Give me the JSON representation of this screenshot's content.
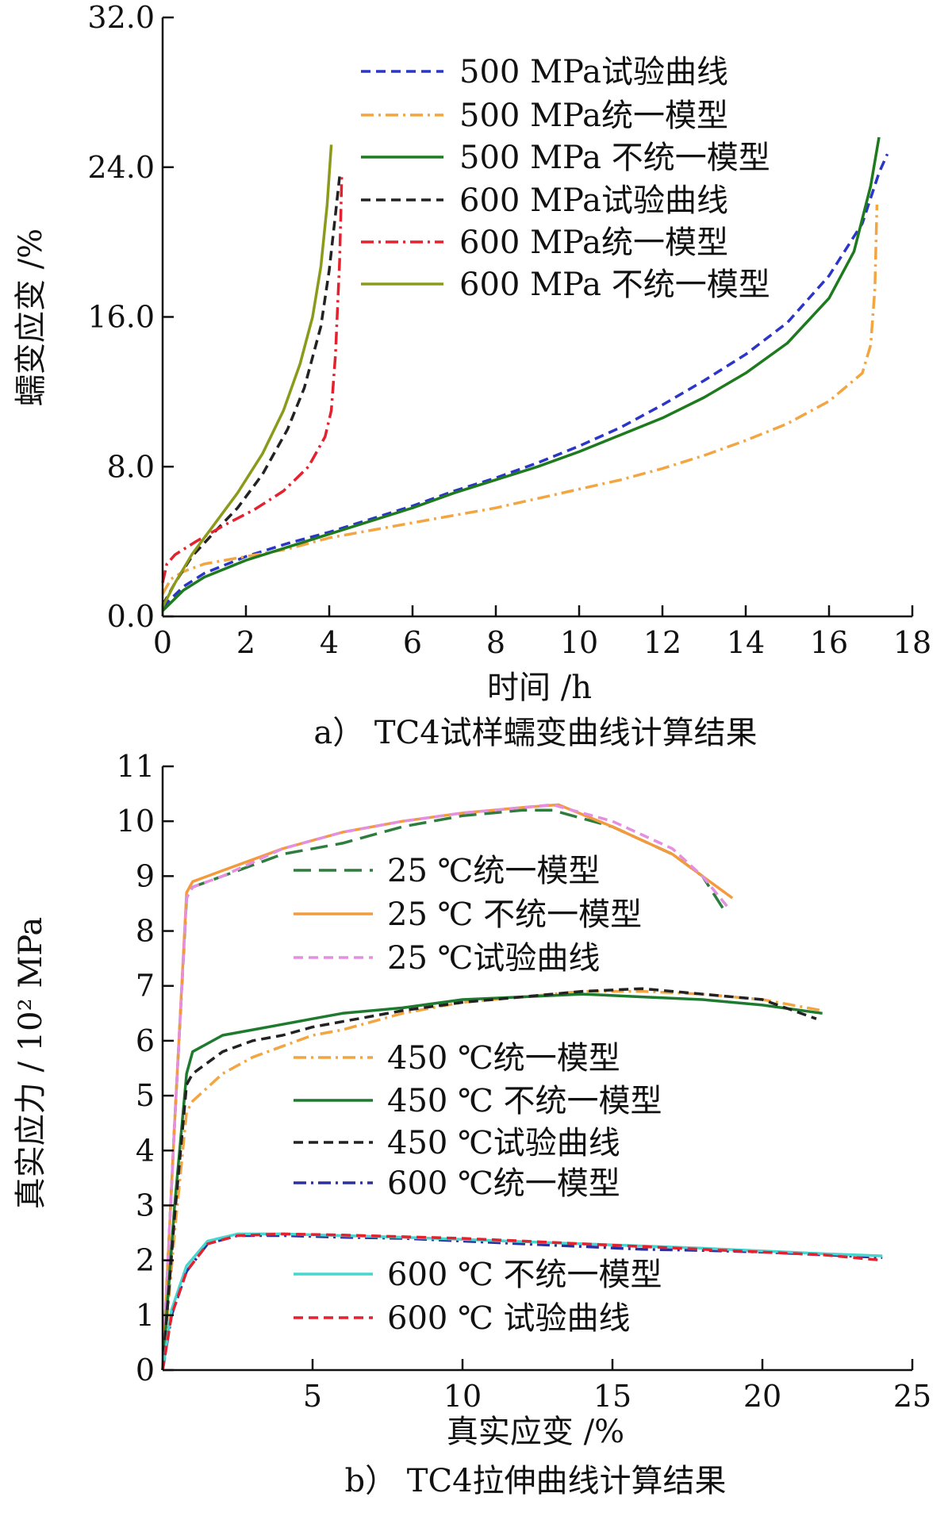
{
  "chart_data": [
    {
      "type": "line",
      "caption": "a） TC4试样蠕变曲线计算结果",
      "xlabel": "时间 /h",
      "ylabel": "蠕变应变 /%",
      "xlim": [
        0,
        18
      ],
      "ylim": [
        0,
        32
      ],
      "x_ticks": [
        "0",
        "2",
        "4",
        "6",
        "8",
        "10",
        "12",
        "14",
        "16",
        "18"
      ],
      "y_ticks": [
        "0.0",
        "8.0",
        "16.0",
        "24.0",
        "32.0"
      ],
      "grid": false,
      "legend_position": "top-right",
      "series": [
        {
          "name": "500 MPa试验曲线",
          "color": "#2b35c8",
          "dash": "dashed",
          "x": [
            0,
            0.5,
            1,
            2,
            3,
            4,
            5,
            6,
            7,
            8,
            9,
            10,
            11,
            12,
            13,
            14,
            15,
            16,
            16.8,
            17.2,
            17.4
          ],
          "y": [
            0.5,
            1.6,
            2.3,
            3.2,
            3.9,
            4.5,
            5.2,
            5.9,
            6.7,
            7.4,
            8.2,
            9.1,
            10.1,
            11.3,
            12.6,
            14.0,
            15.7,
            18.2,
            21.0,
            23.7,
            24.7
          ]
        },
        {
          "name": "500 MPa统一模型",
          "color": "#f2a541",
          "dash": "dashdot",
          "x": [
            0,
            0.2,
            0.5,
            1,
            2,
            3,
            4,
            5,
            6,
            7,
            8,
            9,
            10,
            11,
            12,
            13,
            14,
            15,
            16,
            16.8,
            17.0,
            17.1,
            17.15
          ],
          "y": [
            1.2,
            2.0,
            2.4,
            2.8,
            3.2,
            3.6,
            4.2,
            4.6,
            5.0,
            5.4,
            5.8,
            6.3,
            6.8,
            7.3,
            7.9,
            8.6,
            9.4,
            10.3,
            11.5,
            13.0,
            14.5,
            17.5,
            22.0
          ]
        },
        {
          "name": "500 MPa 不统一模型",
          "color": "#1e7a1e",
          "dash": "solid",
          "x": [
            0,
            0.5,
            1,
            2,
            3,
            4,
            5,
            6,
            7,
            8,
            9,
            10,
            11,
            12,
            13,
            14,
            15,
            16,
            16.6,
            17.0,
            17.2
          ],
          "y": [
            0.3,
            1.4,
            2.1,
            3.0,
            3.7,
            4.4,
            5.1,
            5.8,
            6.6,
            7.3,
            8.0,
            8.8,
            9.7,
            10.6,
            11.7,
            13.0,
            14.6,
            17.0,
            19.5,
            23.0,
            25.6
          ]
        },
        {
          "name": "600 MPa试验曲线",
          "color": "#222222",
          "dash": "dashed",
          "x": [
            0,
            0.3,
            0.7,
            1.2,
            1.8,
            2.4,
            3.0,
            3.4,
            3.8,
            4.0,
            4.15,
            4.25
          ],
          "y": [
            0.6,
            1.8,
            3.2,
            4.4,
            5.8,
            7.6,
            10.0,
            12.2,
            15.5,
            18.5,
            21.5,
            23.5
          ]
        },
        {
          "name": "600 MPa统一模型",
          "color": "#e4212e",
          "dash": "dashdot",
          "x": [
            0,
            0.1,
            0.3,
            0.8,
            1.5,
            2.2,
            2.9,
            3.5,
            3.9,
            4.05,
            4.15,
            4.25,
            4.3
          ],
          "y": [
            1.8,
            2.8,
            3.3,
            4.0,
            4.9,
            5.7,
            6.7,
            8.0,
            9.6,
            11.0,
            14.0,
            19.0,
            23.5
          ]
        },
        {
          "name": "600 MPa 不统一模型",
          "color": "#8c9a1c",
          "dash": "solid",
          "x": [
            0,
            0.3,
            0.7,
            1.2,
            1.8,
            2.4,
            2.9,
            3.3,
            3.6,
            3.8,
            3.95,
            4.05
          ],
          "y": [
            0.5,
            1.8,
            3.3,
            4.8,
            6.6,
            8.7,
            11.0,
            13.5,
            16.0,
            18.7,
            22.0,
            25.2
          ]
        }
      ]
    },
    {
      "type": "line",
      "caption": "b） TC4拉伸曲线计算结果",
      "xlabel": "真实应变 /%",
      "ylabel": "真实应力 / 10² MPa",
      "xlim": [
        0,
        25
      ],
      "ylim": [
        0,
        11
      ],
      "x_ticks": [
        "5",
        "10",
        "15",
        "20",
        "25"
      ],
      "y_ticks": [
        "0",
        "1",
        "2",
        "3",
        "4",
        "5",
        "6",
        "7",
        "8",
        "9",
        "10",
        "11"
      ],
      "grid": false,
      "legend_position": "center-left",
      "series": [
        {
          "name": "25 ℃统一模型",
          "color": "#2e7d3e",
          "dash": "longdash",
          "x": [
            0,
            0.4,
            0.8,
            1.0,
            2,
            4,
            6,
            8,
            10,
            12,
            13,
            15,
            17,
            18,
            18.7
          ],
          "y": [
            0,
            4.5,
            8.6,
            8.8,
            9.0,
            9.4,
            9.6,
            9.9,
            10.1,
            10.2,
            10.2,
            9.9,
            9.4,
            9.0,
            8.4
          ]
        },
        {
          "name": "25 ℃ 不统一模型",
          "color": "#f39a3c",
          "dash": "solid",
          "x": [
            0,
            0.4,
            0.8,
            1.0,
            2,
            4,
            6,
            8,
            10,
            12,
            13.2,
            15,
            17,
            18,
            19
          ],
          "y": [
            0,
            4.5,
            8.7,
            8.9,
            9.1,
            9.5,
            9.8,
            10.0,
            10.15,
            10.25,
            10.3,
            9.9,
            9.4,
            9.0,
            8.6
          ]
        },
        {
          "name": "25 ℃试验曲线",
          "color": "#e48fe0",
          "dash": "dashed",
          "x": [
            0,
            0.4,
            0.8,
            1.0,
            2,
            4,
            6,
            8,
            10,
            12,
            13,
            15,
            17,
            18,
            18.9
          ],
          "y": [
            0,
            4.5,
            8.6,
            8.8,
            9.0,
            9.5,
            9.8,
            10.0,
            10.15,
            10.25,
            10.3,
            10.0,
            9.5,
            9.0,
            8.4
          ]
        },
        {
          "name": "450 ℃统一模型",
          "color": "#f2a541",
          "dash": "dashdot",
          "x": [
            0,
            0.4,
            0.8,
            1,
            2,
            3,
            4,
            5,
            6,
            8,
            10,
            12,
            14,
            16,
            18,
            20,
            22
          ],
          "y": [
            0,
            2.5,
            4.7,
            4.9,
            5.4,
            5.7,
            5.9,
            6.1,
            6.2,
            6.5,
            6.7,
            6.8,
            6.9,
            6.9,
            6.85,
            6.75,
            6.55
          ]
        },
        {
          "name": "450 ℃ 不统一模型",
          "color": "#1e7a2e",
          "dash": "solid",
          "x": [
            0,
            0.4,
            0.8,
            1,
            2,
            3,
            4,
            5,
            6,
            8,
            10,
            12,
            14,
            16,
            18,
            20,
            22
          ],
          "y": [
            0,
            3.0,
            5.4,
            5.8,
            6.1,
            6.2,
            6.3,
            6.4,
            6.5,
            6.6,
            6.75,
            6.8,
            6.85,
            6.8,
            6.75,
            6.65,
            6.5
          ]
        },
        {
          "name": "450 ℃试验曲线",
          "color": "#222222",
          "dash": "dashed",
          "x": [
            0,
            0.4,
            0.8,
            1,
            2,
            3,
            4,
            5,
            6,
            8,
            10,
            12,
            14,
            16,
            18,
            20,
            21.8
          ],
          "y": [
            0,
            2.8,
            5.2,
            5.4,
            5.8,
            6.0,
            6.1,
            6.25,
            6.35,
            6.55,
            6.7,
            6.8,
            6.9,
            6.95,
            6.85,
            6.75,
            6.4
          ]
        },
        {
          "name": "600 ℃统一模型",
          "color": "#2b2fa0",
          "dash": "dashdot",
          "x": [
            0,
            0.3,
            0.8,
            1.5,
            2.5,
            4,
            6,
            8,
            10,
            12,
            14,
            16,
            18,
            20,
            22,
            24
          ],
          "y": [
            0,
            1.0,
            1.8,
            2.3,
            2.45,
            2.45,
            2.42,
            2.4,
            2.35,
            2.3,
            2.25,
            2.2,
            2.18,
            2.15,
            2.1,
            2.05
          ]
        },
        {
          "name": "600 ℃ 不统一模型",
          "color": "#45d6cf",
          "dash": "solid",
          "x": [
            0,
            0.3,
            0.8,
            1.5,
            2.5,
            4,
            6,
            8,
            10,
            12,
            14,
            16,
            18,
            20,
            22,
            24
          ],
          "y": [
            0,
            1.1,
            1.9,
            2.35,
            2.48,
            2.48,
            2.45,
            2.42,
            2.38,
            2.34,
            2.3,
            2.26,
            2.22,
            2.17,
            2.12,
            2.08
          ]
        },
        {
          "name": "600 ℃ 试验曲线",
          "color": "#e4212e",
          "dash": "dashed",
          "x": [
            0,
            0.3,
            0.8,
            1.5,
            2.5,
            4,
            6,
            8,
            10,
            12,
            14,
            16,
            18,
            20,
            22,
            24
          ],
          "y": [
            0,
            1.0,
            1.8,
            2.3,
            2.45,
            2.48,
            2.46,
            2.43,
            2.4,
            2.35,
            2.3,
            2.25,
            2.2,
            2.15,
            2.1,
            2.0
          ]
        }
      ]
    }
  ]
}
